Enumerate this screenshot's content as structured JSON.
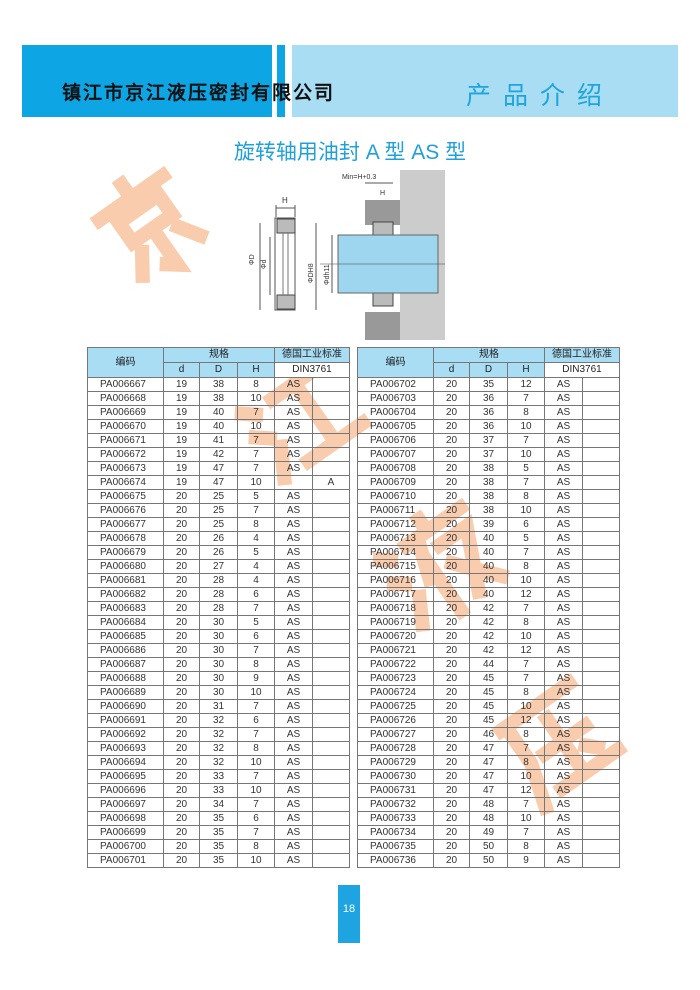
{
  "header": {
    "company": "镇江市京江液压密封有限公司",
    "section": "产品介绍"
  },
  "title": "旋转轴用油封 A 型   AS 型",
  "watermark": [
    "京",
    "江",
    "液",
    "压"
  ],
  "diagram": {
    "labels": {
      "h": "H",
      "D": "ΦD",
      "d": "Φd",
      "DH8": "ΦDH8",
      "dh11": "Φdh11",
      "min": "Min=H+0.3"
    }
  },
  "colors": {
    "band_dark": "#0ea5e4",
    "band_light": "#a9ddf4",
    "title": "#1fa0da",
    "watermark": "#f5a36c"
  },
  "table_headers": {
    "code": "编码",
    "spec": "规格",
    "d": "d",
    "D": "D",
    "H": "H",
    "standard": "德国工业标准",
    "din": "DIN3761"
  },
  "tables": {
    "left": {
      "rows": [
        [
          "PA006667",
          "19",
          "38",
          "8",
          "AS",
          ""
        ],
        [
          "PA006668",
          "19",
          "38",
          "10",
          "AS",
          ""
        ],
        [
          "PA006669",
          "19",
          "40",
          "7",
          "AS",
          ""
        ],
        [
          "PA006670",
          "19",
          "40",
          "10",
          "AS",
          ""
        ],
        [
          "PA006671",
          "19",
          "41",
          "7",
          "AS",
          ""
        ],
        [
          "PA006672",
          "19",
          "42",
          "7",
          "AS",
          ""
        ],
        [
          "PA006673",
          "19",
          "47",
          "7",
          "AS",
          ""
        ],
        [
          "PA006674",
          "19",
          "47",
          "10",
          "",
          "A"
        ],
        [
          "PA006675",
          "20",
          "25",
          "5",
          "AS",
          ""
        ],
        [
          "PA006676",
          "20",
          "25",
          "7",
          "AS",
          ""
        ],
        [
          "PA006677",
          "20",
          "25",
          "8",
          "AS",
          ""
        ],
        [
          "PA006678",
          "20",
          "26",
          "4",
          "AS",
          ""
        ],
        [
          "PA006679",
          "20",
          "26",
          "5",
          "AS",
          ""
        ],
        [
          "PA006680",
          "20",
          "27",
          "4",
          "AS",
          ""
        ],
        [
          "PA006681",
          "20",
          "28",
          "4",
          "AS",
          ""
        ],
        [
          "PA006682",
          "20",
          "28",
          "6",
          "AS",
          ""
        ],
        [
          "PA006683",
          "20",
          "28",
          "7",
          "AS",
          ""
        ],
        [
          "PA006684",
          "20",
          "30",
          "5",
          "AS",
          ""
        ],
        [
          "PA006685",
          "20",
          "30",
          "6",
          "AS",
          ""
        ],
        [
          "PA006686",
          "20",
          "30",
          "7",
          "AS",
          ""
        ],
        [
          "PA006687",
          "20",
          "30",
          "8",
          "AS",
          ""
        ],
        [
          "PA006688",
          "20",
          "30",
          "9",
          "AS",
          ""
        ],
        [
          "PA006689",
          "20",
          "30",
          "10",
          "AS",
          ""
        ],
        [
          "PA006690",
          "20",
          "31",
          "7",
          "AS",
          ""
        ],
        [
          "PA006691",
          "20",
          "32",
          "6",
          "AS",
          ""
        ],
        [
          "PA006692",
          "20",
          "32",
          "7",
          "AS",
          ""
        ],
        [
          "PA006693",
          "20",
          "32",
          "8",
          "AS",
          ""
        ],
        [
          "PA006694",
          "20",
          "32",
          "10",
          "AS",
          ""
        ],
        [
          "PA006695",
          "20",
          "33",
          "7",
          "AS",
          ""
        ],
        [
          "PA006696",
          "20",
          "33",
          "10",
          "AS",
          ""
        ],
        [
          "PA006697",
          "20",
          "34",
          "7",
          "AS",
          ""
        ],
        [
          "PA006698",
          "20",
          "35",
          "6",
          "AS",
          ""
        ],
        [
          "PA006699",
          "20",
          "35",
          "7",
          "AS",
          ""
        ],
        [
          "PA006700",
          "20",
          "35",
          "8",
          "AS",
          ""
        ],
        [
          "PA006701",
          "20",
          "35",
          "10",
          "AS",
          ""
        ]
      ]
    },
    "right": {
      "rows": [
        [
          "PA006702",
          "20",
          "35",
          "12",
          "AS",
          ""
        ],
        [
          "PA006703",
          "20",
          "36",
          "7",
          "AS",
          ""
        ],
        [
          "PA006704",
          "20",
          "36",
          "8",
          "AS",
          ""
        ],
        [
          "PA006705",
          "20",
          "36",
          "10",
          "AS",
          ""
        ],
        [
          "PA006706",
          "20",
          "37",
          "7",
          "AS",
          ""
        ],
        [
          "PA006707",
          "20",
          "37",
          "10",
          "AS",
          ""
        ],
        [
          "PA006708",
          "20",
          "38",
          "5",
          "AS",
          ""
        ],
        [
          "PA006709",
          "20",
          "38",
          "7",
          "AS",
          ""
        ],
        [
          "PA006710",
          "20",
          "38",
          "8",
          "AS",
          ""
        ],
        [
          "PA006711",
          "20",
          "38",
          "10",
          "AS",
          ""
        ],
        [
          "PA006712",
          "20",
          "39",
          "6",
          "AS",
          ""
        ],
        [
          "PA006713",
          "20",
          "40",
          "5",
          "AS",
          ""
        ],
        [
          "PA006714",
          "20",
          "40",
          "7",
          "AS",
          ""
        ],
        [
          "PA006715",
          "20",
          "40",
          "8",
          "AS",
          ""
        ],
        [
          "PA006716",
          "20",
          "40",
          "10",
          "AS",
          ""
        ],
        [
          "PA006717",
          "20",
          "40",
          "12",
          "AS",
          ""
        ],
        [
          "PA006718",
          "20",
          "42",
          "7",
          "AS",
          ""
        ],
        [
          "PA006719",
          "20",
          "42",
          "8",
          "AS",
          ""
        ],
        [
          "PA006720",
          "20",
          "42",
          "10",
          "AS",
          ""
        ],
        [
          "PA006721",
          "20",
          "42",
          "12",
          "AS",
          ""
        ],
        [
          "PA006722",
          "20",
          "44",
          "7",
          "AS",
          ""
        ],
        [
          "PA006723",
          "20",
          "45",
          "7",
          "AS",
          ""
        ],
        [
          "PA006724",
          "20",
          "45",
          "8",
          "AS",
          ""
        ],
        [
          "PA006725",
          "20",
          "45",
          "10",
          "AS",
          ""
        ],
        [
          "PA006726",
          "20",
          "45",
          "12",
          "AS",
          ""
        ],
        [
          "PA006727",
          "20",
          "46",
          "8",
          "AS",
          ""
        ],
        [
          "PA006728",
          "20",
          "47",
          "7",
          "AS",
          ""
        ],
        [
          "PA006729",
          "20",
          "47",
          "8",
          "AS",
          ""
        ],
        [
          "PA006730",
          "20",
          "47",
          "10",
          "AS",
          ""
        ],
        [
          "PA006731",
          "20",
          "47",
          "12",
          "AS",
          ""
        ],
        [
          "PA006732",
          "20",
          "48",
          "7",
          "AS",
          ""
        ],
        [
          "PA006733",
          "20",
          "48",
          "10",
          "AS",
          ""
        ],
        [
          "PA006734",
          "20",
          "49",
          "7",
          "AS",
          ""
        ],
        [
          "PA006735",
          "20",
          "50",
          "8",
          "AS",
          ""
        ],
        [
          "PA006736",
          "20",
          "50",
          "9",
          "AS",
          ""
        ]
      ]
    }
  },
  "page_number": "18"
}
